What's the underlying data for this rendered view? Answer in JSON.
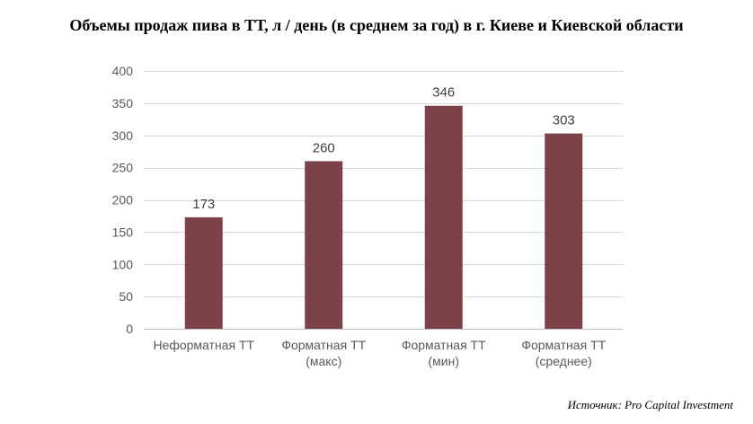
{
  "chart_data": {
    "type": "bar",
    "title": "Объемы продаж пива в ТТ, л / день (в среднем за год) в г. Киеве и Киевской области",
    "categories": [
      [
        "Неформатная ТТ"
      ],
      [
        "Форматная ТТ",
        "(макс)"
      ],
      [
        "Форматная ТТ",
        "(мин)"
      ],
      [
        "Форматная ТТ",
        "(среднее)"
      ]
    ],
    "values": [
      173,
      260,
      346,
      303
    ],
    "data_labels": [
      "173",
      "260",
      "346",
      "303"
    ],
    "ylim": [
      0,
      400
    ],
    "yticks": [
      0,
      50,
      100,
      150,
      200,
      250,
      300,
      350,
      400
    ],
    "grid": true,
    "legend": "none",
    "bar_color": "#7b4247"
  },
  "source": "Источник: Pro Capital Investment"
}
